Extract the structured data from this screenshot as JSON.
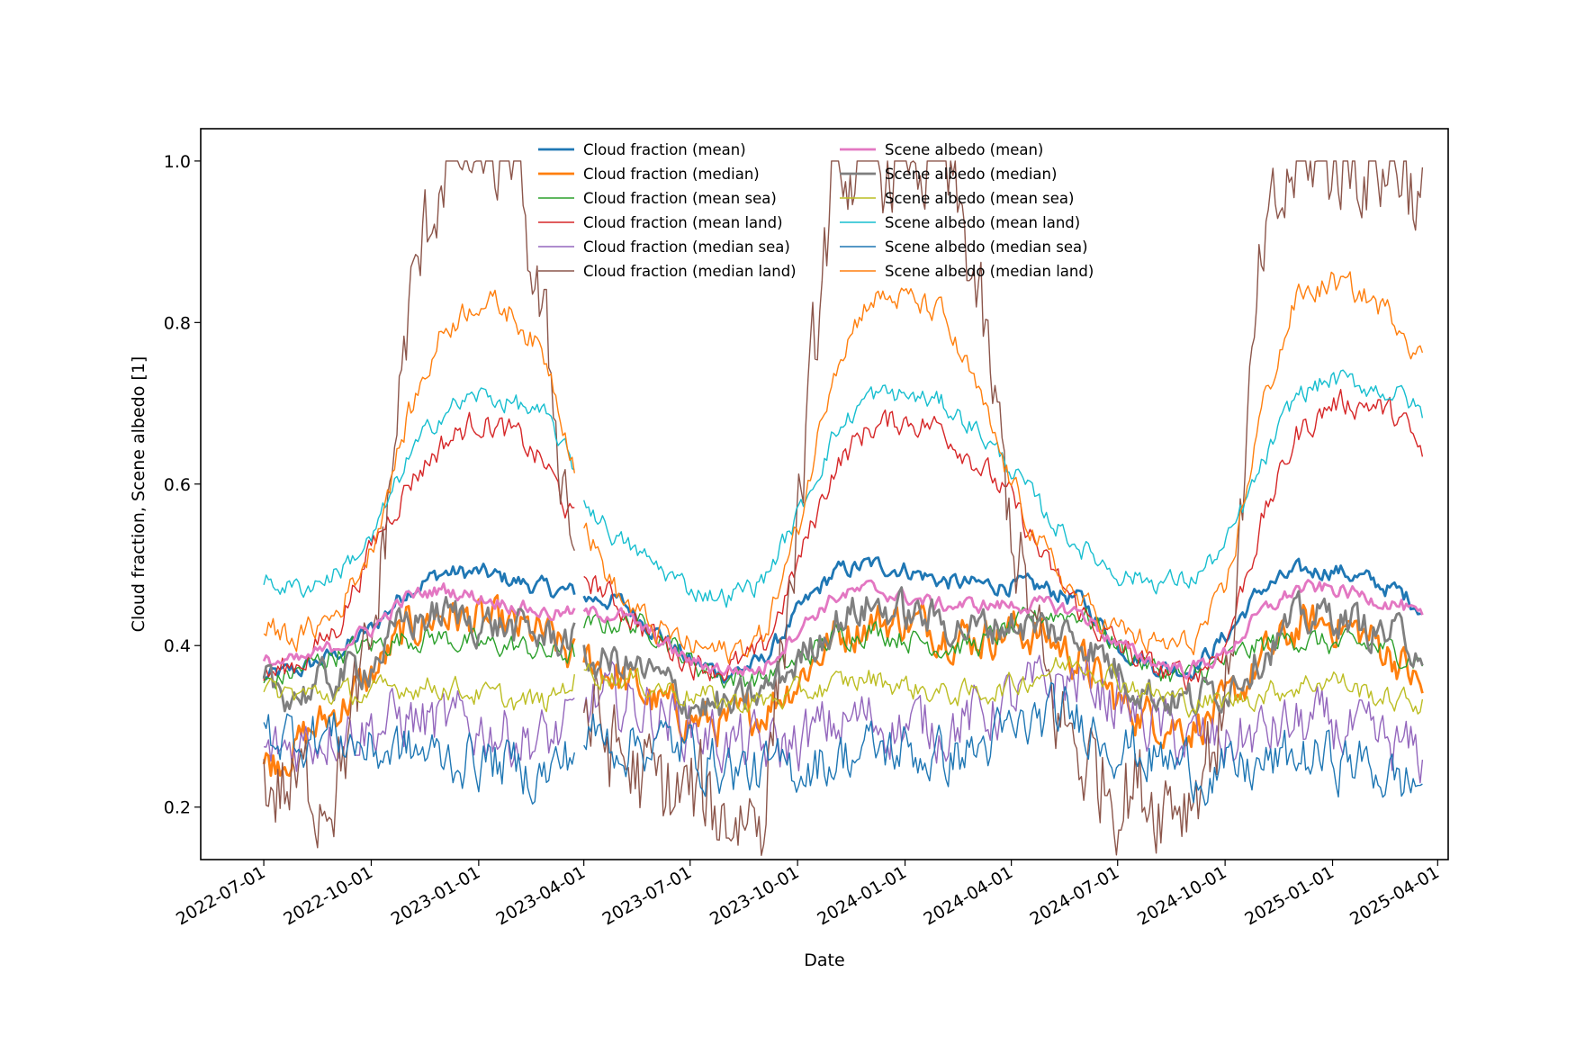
{
  "chart_data": {
    "type": "line",
    "title": "",
    "xlabel": "Date",
    "ylabel": "Cloud fraction, Scene albedo [1]",
    "x_ticks": [
      "2022-07-01",
      "2022-10-01",
      "2023-01-01",
      "2023-04-01",
      "2023-07-01",
      "2023-10-01",
      "2024-01-01",
      "2024-04-01",
      "2024-07-01",
      "2024-10-01",
      "2025-01-01",
      "2025-04-01"
    ],
    "y_ticks": [
      "0.2",
      "0.4",
      "0.6",
      "0.8",
      "1.0"
    ],
    "xlim": [
      "2022-05-08",
      "2025-04-10"
    ],
    "ylim": [
      0.135,
      1.04
    ],
    "grid": false,
    "legend_position": "top-center",
    "data_gap": [
      "2023-03-24",
      "2023-04-01"
    ],
    "x_dates": [
      "2022-07-01",
      "2022-08-01",
      "2022-09-01",
      "2022-10-01",
      "2022-11-01",
      "2022-12-01",
      "2023-01-01",
      "2023-02-01",
      "2023-03-01",
      "2023-03-24",
      "2023-04-01",
      "2023-05-01",
      "2023-06-01",
      "2023-07-01",
      "2023-08-01",
      "2023-09-01",
      "2023-10-01",
      "2023-11-01",
      "2023-12-01",
      "2024-01-01",
      "2024-02-01",
      "2024-03-01",
      "2024-04-01",
      "2024-05-01",
      "2024-06-01",
      "2024-07-01",
      "2024-08-01",
      "2024-09-01",
      "2024-10-01",
      "2024-11-01",
      "2024-12-01",
      "2025-01-01",
      "2025-02-01",
      "2025-03-01",
      "2025-03-20"
    ],
    "series": [
      {
        "name": "Cloud fraction (mean)",
        "color": "#1f77b4",
        "width": 2.8,
        "noise": 0.006,
        "values": [
          0.36,
          0.37,
          0.39,
          0.42,
          0.47,
          0.49,
          0.49,
          0.48,
          0.47,
          0.465,
          0.46,
          0.455,
          0.42,
          0.38,
          0.365,
          0.38,
          0.44,
          0.49,
          0.5,
          0.495,
          0.48,
          0.475,
          0.475,
          0.47,
          0.455,
          0.4,
          0.375,
          0.37,
          0.41,
          0.47,
          0.49,
          0.495,
          0.48,
          0.465,
          0.445
        ]
      },
      {
        "name": "Cloud fraction (median)",
        "color": "#ff7f0e",
        "width": 2.8,
        "noise": 0.014,
        "values": [
          0.25,
          0.28,
          0.32,
          0.36,
          0.42,
          0.44,
          0.43,
          0.42,
          0.41,
          0.38,
          0.39,
          0.36,
          0.33,
          0.31,
          0.3,
          0.32,
          0.36,
          0.41,
          0.43,
          0.43,
          0.42,
          0.41,
          0.42,
          0.41,
          0.38,
          0.33,
          0.31,
          0.3,
          0.32,
          0.38,
          0.42,
          0.43,
          0.41,
          0.38,
          0.34
        ]
      },
      {
        "name": "Cloud fraction (mean sea)",
        "color": "#2ca02c",
        "width": 1.4,
        "noise": 0.008,
        "values": [
          0.35,
          0.37,
          0.39,
          0.4,
          0.41,
          0.41,
          0.4,
          0.4,
          0.39,
          0.39,
          0.42,
          0.43,
          0.42,
          0.38,
          0.36,
          0.36,
          0.38,
          0.41,
          0.42,
          0.41,
          0.4,
          0.4,
          0.42,
          0.44,
          0.44,
          0.4,
          0.37,
          0.36,
          0.38,
          0.4,
          0.41,
          0.4,
          0.4,
          0.39,
          0.38
        ]
      },
      {
        "name": "Cloud fraction (mean land)",
        "color": "#d62728",
        "width": 1.4,
        "noise": 0.009,
        "values": [
          0.36,
          0.38,
          0.42,
          0.52,
          0.6,
          0.65,
          0.68,
          0.66,
          0.62,
          0.55,
          0.49,
          0.45,
          0.41,
          0.38,
          0.37,
          0.39,
          0.5,
          0.62,
          0.67,
          0.68,
          0.67,
          0.63,
          0.58,
          0.5,
          0.44,
          0.4,
          0.37,
          0.36,
          0.4,
          0.55,
          0.66,
          0.7,
          0.7,
          0.68,
          0.63
        ]
      },
      {
        "name": "Cloud fraction (median sea)",
        "color": "#9467bd",
        "width": 1.4,
        "noise": 0.02,
        "values": [
          0.26,
          0.28,
          0.3,
          0.3,
          0.31,
          0.3,
          0.3,
          0.29,
          0.28,
          0.3,
          0.33,
          0.33,
          0.32,
          0.3,
          0.28,
          0.27,
          0.28,
          0.3,
          0.31,
          0.3,
          0.3,
          0.31,
          0.33,
          0.35,
          0.36,
          0.33,
          0.3,
          0.28,
          0.28,
          0.29,
          0.3,
          0.3,
          0.28,
          0.27,
          0.26
        ]
      },
      {
        "name": "Cloud fraction (median land)",
        "color": "#8c564b",
        "width": 1.4,
        "noise": 0.035,
        "values": [
          0.23,
          0.22,
          0.24,
          0.38,
          0.8,
          1.0,
          1.0,
          1.0,
          0.75,
          0.53,
          0.32,
          0.26,
          0.22,
          0.21,
          0.19,
          0.2,
          0.55,
          0.98,
          1.0,
          1.0,
          1.0,
          0.85,
          0.55,
          0.34,
          0.26,
          0.23,
          0.22,
          0.22,
          0.32,
          0.86,
          1.0,
          1.0,
          1.0,
          1.0,
          0.94
        ]
      },
      {
        "name": "Scene albedo (mean)",
        "color": "#e377c2",
        "width": 2.8,
        "noise": 0.005,
        "values": [
          0.38,
          0.38,
          0.4,
          0.42,
          0.46,
          0.47,
          0.46,
          0.45,
          0.44,
          0.44,
          0.44,
          0.44,
          0.41,
          0.38,
          0.37,
          0.37,
          0.42,
          0.46,
          0.47,
          0.46,
          0.45,
          0.45,
          0.45,
          0.45,
          0.44,
          0.4,
          0.38,
          0.37,
          0.39,
          0.44,
          0.47,
          0.47,
          0.46,
          0.45,
          0.43
        ]
      },
      {
        "name": "Scene albedo (median)",
        "color": "#7f7f7f",
        "width": 2.8,
        "noise": 0.013,
        "values": [
          0.35,
          0.34,
          0.36,
          0.38,
          0.43,
          0.44,
          0.43,
          0.42,
          0.41,
          0.41,
          0.38,
          0.38,
          0.36,
          0.33,
          0.32,
          0.34,
          0.38,
          0.43,
          0.45,
          0.44,
          0.43,
          0.42,
          0.43,
          0.42,
          0.41,
          0.37,
          0.34,
          0.33,
          0.35,
          0.39,
          0.43,
          0.44,
          0.42,
          0.41,
          0.4
        ]
      },
      {
        "name": "Scene albedo (mean sea)",
        "color": "#bcbd22",
        "width": 1.4,
        "noise": 0.008,
        "values": [
          0.34,
          0.34,
          0.34,
          0.34,
          0.35,
          0.35,
          0.34,
          0.33,
          0.33,
          0.36,
          0.37,
          0.36,
          0.35,
          0.34,
          0.33,
          0.33,
          0.34,
          0.35,
          0.36,
          0.35,
          0.34,
          0.34,
          0.35,
          0.37,
          0.38,
          0.36,
          0.34,
          0.33,
          0.33,
          0.34,
          0.35,
          0.36,
          0.34,
          0.33,
          0.33
        ]
      },
      {
        "name": "Scene albedo (mean land)",
        "color": "#17becf",
        "width": 1.4,
        "noise": 0.007,
        "values": [
          0.48,
          0.47,
          0.49,
          0.53,
          0.63,
          0.69,
          0.71,
          0.7,
          0.68,
          0.62,
          0.58,
          0.53,
          0.5,
          0.47,
          0.46,
          0.48,
          0.56,
          0.66,
          0.71,
          0.71,
          0.7,
          0.67,
          0.62,
          0.56,
          0.52,
          0.49,
          0.48,
          0.48,
          0.52,
          0.62,
          0.71,
          0.73,
          0.72,
          0.71,
          0.685
        ]
      },
      {
        "name": "Scene albedo (median sea)",
        "color": "#1f77b4",
        "width": 1.4,
        "noise": 0.018,
        "values": [
          0.29,
          0.29,
          0.29,
          0.27,
          0.27,
          0.26,
          0.26,
          0.25,
          0.24,
          0.27,
          0.29,
          0.28,
          0.28,
          0.27,
          0.25,
          0.24,
          0.25,
          0.26,
          0.27,
          0.27,
          0.26,
          0.27,
          0.29,
          0.31,
          0.31,
          0.28,
          0.26,
          0.25,
          0.24,
          0.25,
          0.26,
          0.26,
          0.25,
          0.23,
          0.23
        ]
      },
      {
        "name": "Scene albedo (median land)",
        "color": "#ff7f0e",
        "width": 1.4,
        "noise": 0.009,
        "values": [
          0.42,
          0.41,
          0.44,
          0.52,
          0.68,
          0.79,
          0.83,
          0.81,
          0.75,
          0.63,
          0.55,
          0.46,
          0.42,
          0.4,
          0.39,
          0.41,
          0.54,
          0.75,
          0.83,
          0.83,
          0.81,
          0.72,
          0.6,
          0.51,
          0.45,
          0.42,
          0.4,
          0.4,
          0.46,
          0.69,
          0.83,
          0.85,
          0.83,
          0.8,
          0.75
        ]
      }
    ]
  }
}
